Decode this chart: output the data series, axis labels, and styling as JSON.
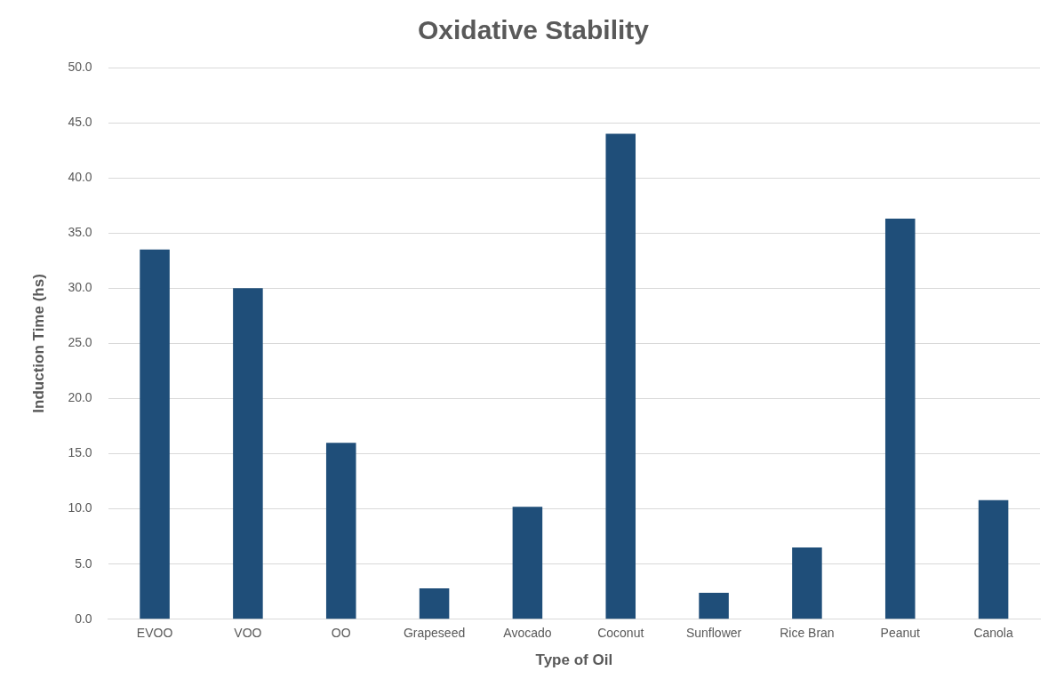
{
  "chart_data": {
    "type": "bar",
    "title": "Oxidative Stability",
    "xlabel": "Type of Oil",
    "ylabel": "Induction Time (hs)",
    "categories": [
      "EVOO",
      "VOO",
      "OO",
      "Grapeseed",
      "Avocado",
      "Coconut",
      "Sunflower",
      "Rice Bran",
      "Peanut",
      "Canola"
    ],
    "values": [
      33.5,
      30.0,
      16.0,
      2.8,
      10.2,
      44.0,
      2.4,
      6.5,
      36.3,
      10.8
    ],
    "color": "#1f4e79",
    "ylim": [
      0,
      50
    ],
    "yticks": [
      {
        "value": 0,
        "label": "0.0"
      },
      {
        "value": 5,
        "label": "5.0"
      },
      {
        "value": 10,
        "label": "10.0"
      },
      {
        "value": 15,
        "label": "15.0"
      },
      {
        "value": 20,
        "label": "20.0"
      },
      {
        "value": 25,
        "label": "25.0"
      },
      {
        "value": 30,
        "label": "30.0"
      },
      {
        "value": 35,
        "label": "35.0"
      },
      {
        "value": 40,
        "label": "40.0"
      },
      {
        "value": 45,
        "label": "45.0"
      },
      {
        "value": 50,
        "label": "50.0"
      }
    ],
    "grid": "y"
  }
}
